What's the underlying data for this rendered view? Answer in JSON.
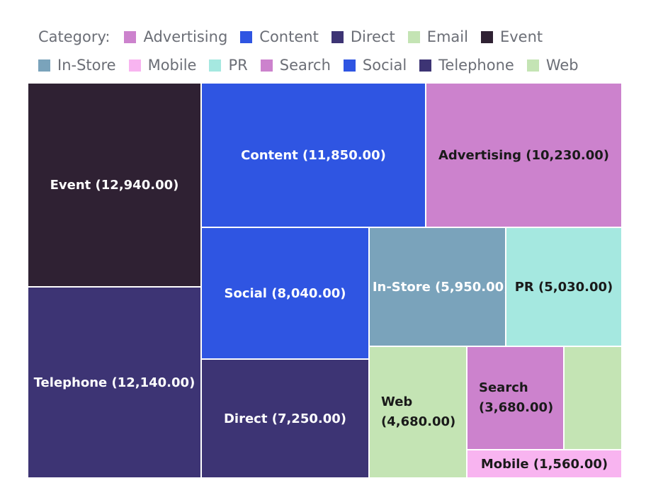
{
  "chart_data": {
    "type": "treemap",
    "legend_title": "Category:",
    "legend_position": "top",
    "legend": [
      {
        "name": "Advertising",
        "color": "#cc82cd"
      },
      {
        "name": "Content",
        "color": "#2f55e2"
      },
      {
        "name": "Direct",
        "color": "#3d3474"
      },
      {
        "name": "Email",
        "color": "#c4e4b4"
      },
      {
        "name": "Event",
        "color": "#2f2133"
      },
      {
        "name": "In-Store",
        "color": "#7aa3bb"
      },
      {
        "name": "Mobile",
        "color": "#f8b4f0"
      },
      {
        "name": "PR",
        "color": "#a5e8e0"
      },
      {
        "name": "Search",
        "color": "#cc82cd"
      },
      {
        "name": "Social",
        "color": "#2f55e2"
      },
      {
        "name": "Telephone",
        "color": "#3d3474"
      },
      {
        "name": "Web",
        "color": "#c4e4b4"
      }
    ],
    "tiles": [
      {
        "name": "Event",
        "value": 12940,
        "label": "Event (12,940.00)"
      },
      {
        "name": "Telephone",
        "value": 12140,
        "label": "Telephone (12,140.00)"
      },
      {
        "name": "Content",
        "value": 11850,
        "label": "Content (11,850.00)"
      },
      {
        "name": "Advertising",
        "value": 10230,
        "label": "Advertising (10,230.00)"
      },
      {
        "name": "Social",
        "value": 8040,
        "label": "Social (8,040.00)"
      },
      {
        "name": "Direct",
        "value": 7250,
        "label": "Direct (7,250.00)"
      },
      {
        "name": "In-Store",
        "value": 5950,
        "label": "In-Store (5,950.00)"
      },
      {
        "name": "PR",
        "value": 5030,
        "label": "PR (5,030.00)"
      },
      {
        "name": "Web",
        "value": 4680,
        "label": "Web (4,680.00)"
      },
      {
        "name": "Search",
        "value": 3680,
        "label": "Search (3,680.00)"
      },
      {
        "name": "Email",
        "value": 2160,
        "label": ""
      },
      {
        "name": "Mobile",
        "value": 1560,
        "label": "Mobile (1,560.00)"
      }
    ]
  }
}
